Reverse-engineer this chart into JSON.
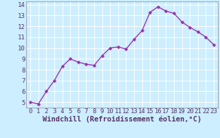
{
  "x": [
    0,
    1,
    2,
    3,
    4,
    5,
    6,
    7,
    8,
    9,
    10,
    11,
    12,
    13,
    14,
    15,
    16,
    17,
    18,
    19,
    20,
    21,
    22,
    23
  ],
  "y": [
    5.0,
    4.85,
    6.0,
    7.0,
    8.3,
    9.0,
    8.7,
    8.5,
    8.4,
    9.3,
    10.0,
    10.1,
    9.9,
    10.8,
    11.6,
    13.3,
    13.8,
    13.4,
    13.2,
    12.4,
    11.9,
    11.5,
    11.0,
    10.3
  ],
  "line_color": "#9933aa",
  "marker_color": "#9933aa",
  "bg_color": "#cceeff",
  "grid_color": "#aaddcc",
  "xlabel": "Windchill (Refroidissement éolien,°C)",
  "xlim_min": -0.5,
  "xlim_max": 23.5,
  "ylim_min": 4.5,
  "ylim_max": 14.3,
  "yticks": [
    5,
    6,
    7,
    8,
    9,
    10,
    11,
    12,
    13,
    14
  ],
  "xticks": [
    0,
    1,
    2,
    3,
    4,
    5,
    6,
    7,
    8,
    9,
    10,
    11,
    12,
    13,
    14,
    15,
    16,
    17,
    18,
    19,
    20,
    21,
    22,
    23
  ],
  "xlabel_fontsize": 7.5,
  "tick_fontsize": 6.5,
  "line_width": 1.0,
  "marker_size": 2.5,
  "spine_color": "#888899",
  "tick_color": "#553366",
  "label_color": "#553366"
}
